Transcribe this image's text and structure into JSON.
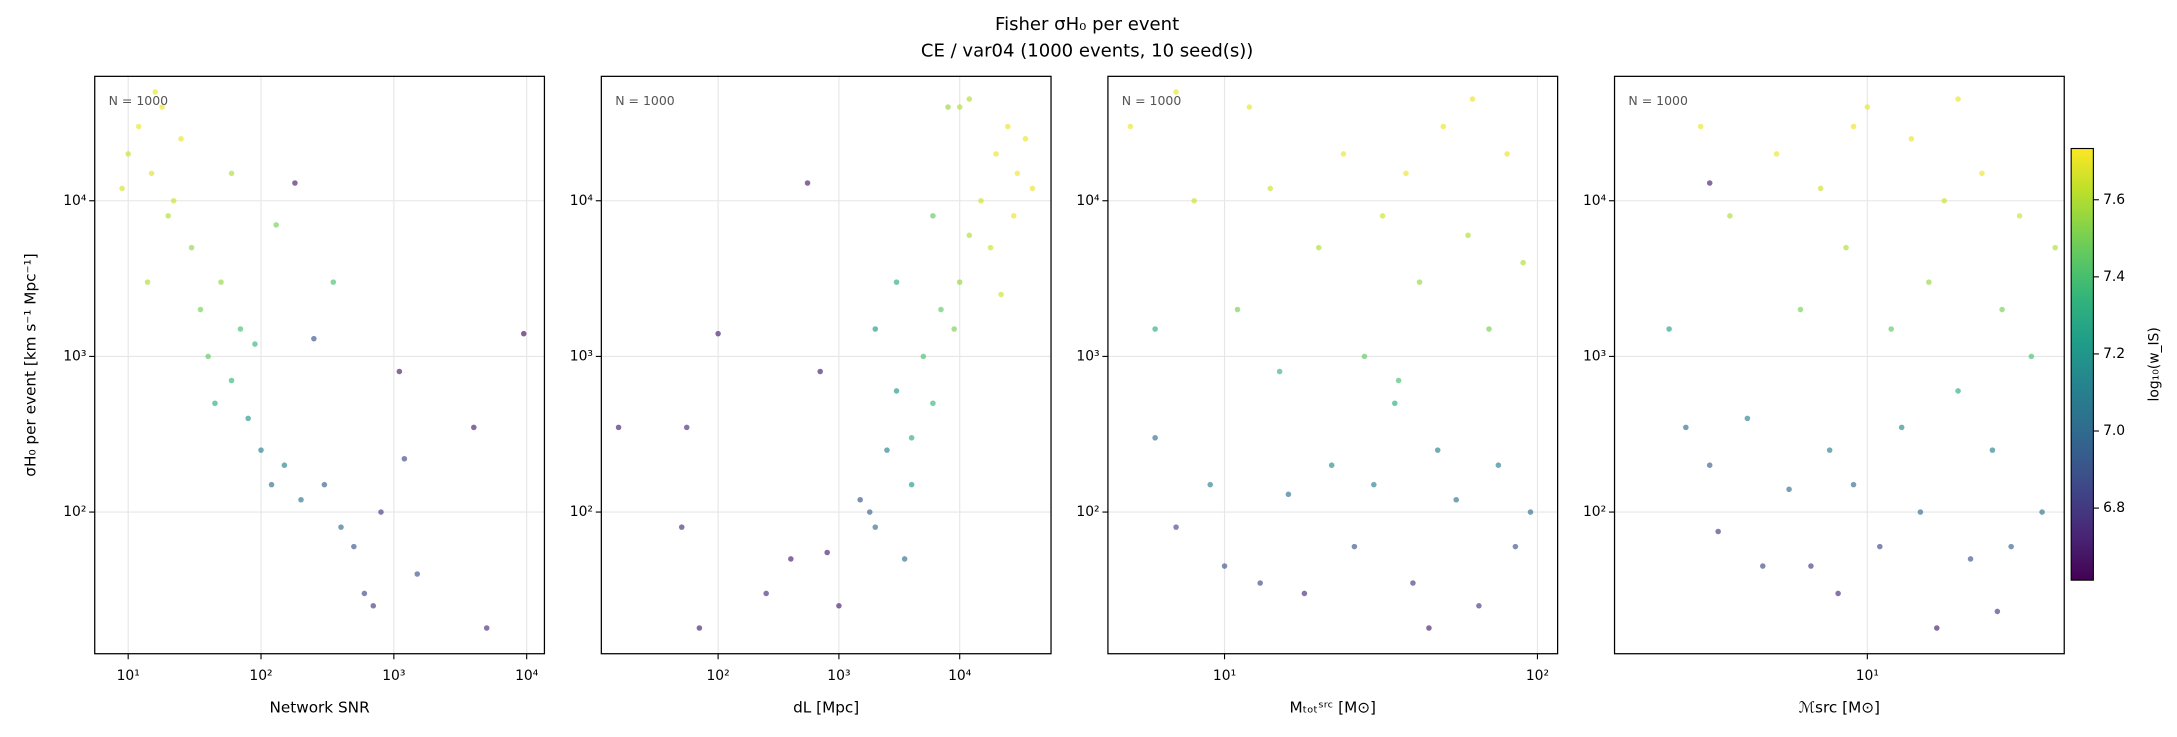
{
  "title": "Fisher σH₀ per event",
  "subtitle": "CE / var04  (1000 events, 10 seed(s))",
  "colorbar": {
    "label": "log₁₀(w_IS)",
    "cmap": "viridis",
    "clim": [
      6.613,
      7.733
    ],
    "ticks": [
      6.8,
      {
        "value": 7.0,
        "label": "7.0"
      },
      7.2,
      7.4,
      7.6
    ]
  },
  "chart_data": [
    {
      "type": "scatter",
      "xlabel": "Network SNR",
      "ylabel": "σH₀ per event [km s⁻¹ Mpc⁻¹]",
      "annotation": "N = 1000",
      "xlog": true,
      "ylog": true,
      "grid": true,
      "xlim": [
        5.6,
        13600
      ],
      "ylim": [
        12.3,
        63000
      ],
      "xticks": [
        {
          "value": 10,
          "label": "10¹"
        },
        {
          "value": 100,
          "label": "10²"
        },
        {
          "value": 1000,
          "label": "10³"
        },
        {
          "value": 10000,
          "label": "10⁴"
        }
      ],
      "yticks": [
        {
          "value": 100,
          "label": "10²"
        },
        {
          "value": 1000,
          "label": "10³"
        },
        {
          "value": 10000,
          "label": "10⁴"
        }
      ],
      "x": [
        10,
        12,
        15,
        18,
        20,
        25,
        9,
        30,
        35,
        40,
        50,
        60,
        70,
        80,
        100,
        120,
        150,
        200,
        300,
        400,
        500,
        600,
        700,
        1100,
        1500,
        4000,
        5000,
        9500,
        14,
        22,
        45,
        90,
        180,
        250,
        1200,
        800,
        16,
        60,
        130,
        350
      ],
      "y": [
        20000,
        30000,
        15000,
        40000,
        8000,
        25000,
        12000,
        5000,
        2000,
        1000,
        3000,
        700,
        1500,
        400,
        250,
        150,
        200,
        120,
        150,
        80,
        60,
        30,
        25,
        800,
        40,
        350,
        18,
        1400,
        3000,
        10000,
        500,
        1200,
        13000,
        1300,
        220,
        100,
        50000,
        15000,
        7000,
        3000
      ],
      "c": [
        7.65,
        7.7,
        7.68,
        7.7,
        7.6,
        7.7,
        7.66,
        7.55,
        7.5,
        7.45,
        7.55,
        7.35,
        7.4,
        7.2,
        7.1,
        7.0,
        7.1,
        7.05,
        6.95,
        7.0,
        6.9,
        6.85,
        6.8,
        6.7,
        6.9,
        6.7,
        6.75,
        6.65,
        7.6,
        7.65,
        7.3,
        7.35,
        6.7,
        6.9,
        6.85,
        6.8,
        7.7,
        7.6,
        7.5,
        7.4
      ]
    },
    {
      "type": "scatter",
      "xlabel": "dL [Mpc]",
      "annotation": "N = 1000",
      "xlog": true,
      "ylog": true,
      "grid": true,
      "xlim": [
        10.8,
        57000
      ],
      "ylim": [
        12.3,
        63000
      ],
      "xticks": [
        {
          "value": 100,
          "label": "10²"
        },
        {
          "value": 1000,
          "label": "10³"
        },
        {
          "value": 10000,
          "label": "10⁴"
        }
      ],
      "yticks": [
        {
          "value": 100,
          "label": "10²"
        },
        {
          "value": 1000,
          "label": "10³"
        },
        {
          "value": 10000,
          "label": "10⁴"
        }
      ],
      "x": [
        15,
        50,
        55,
        70,
        100,
        550,
        700,
        250,
        400,
        800,
        1000,
        1500,
        2000,
        2500,
        3000,
        3000,
        4000,
        5000,
        6000,
        7000,
        8000,
        10000,
        12000,
        15000,
        20000,
        25000,
        30000,
        35000,
        18000,
        9000,
        4000,
        6000,
        12000,
        28000,
        2000,
        1800,
        3500,
        22000,
        10000,
        40000
      ],
      "y": [
        350,
        80,
        350,
        18,
        1400,
        13000,
        800,
        30,
        50,
        55,
        25,
        120,
        80,
        250,
        600,
        3000,
        150,
        1000,
        500,
        2000,
        40000,
        3000,
        6000,
        10000,
        20000,
        30000,
        15000,
        25000,
        5000,
        1500,
        300,
        8000,
        45000,
        8000,
        1500,
        100,
        50,
        2500,
        40000,
        12000
      ],
      "c": [
        6.7,
        6.75,
        6.75,
        6.7,
        6.7,
        6.7,
        6.7,
        6.75,
        6.7,
        6.7,
        6.7,
        6.9,
        7.0,
        7.1,
        7.2,
        7.3,
        7.2,
        7.4,
        7.35,
        7.45,
        7.55,
        7.55,
        7.6,
        7.65,
        7.7,
        7.7,
        7.72,
        7.7,
        7.65,
        7.5,
        7.3,
        7.45,
        7.6,
        7.7,
        7.2,
        6.95,
        7.0,
        7.65,
        7.6,
        7.7
      ]
    },
    {
      "type": "scatter",
      "xlabel": "Mₜₒₜˢʳᶜ [M⊙]",
      "annotation": "N = 1000",
      "xlog": true,
      "ylog": true,
      "grid": true,
      "xlim": [
        4.24,
        116
      ],
      "ylim": [
        12.3,
        63000
      ],
      "xticks": [
        {
          "value": 10,
          "label": "10¹"
        },
        {
          "value": 100,
          "label": "10²"
        }
      ],
      "yticks": [
        {
          "value": 100,
          "label": "10²"
        },
        {
          "value": 1000,
          "label": "10³"
        },
        {
          "value": 10000,
          "label": "10⁴"
        }
      ],
      "x": [
        5,
        6,
        6,
        7,
        8,
        9,
        10,
        11,
        12,
        13,
        15,
        16,
        18,
        20,
        22,
        24,
        26,
        28,
        30,
        32,
        35,
        38,
        40,
        42,
        45,
        48,
        50,
        55,
        60,
        65,
        70,
        75,
        80,
        85,
        90,
        95,
        7,
        14,
        36,
        62
      ],
      "y": [
        30000,
        1500,
        300,
        80,
        10000,
        150,
        45,
        2000,
        40000,
        35,
        800,
        130,
        30,
        5000,
        200,
        20000,
        60,
        1000,
        150,
        8000,
        500,
        15000,
        35,
        3000,
        18,
        250,
        30000,
        120,
        6000,
        25,
        1500,
        200,
        20000,
        60,
        4000,
        100,
        50000,
        12000,
        700,
        45000
      ],
      "c": [
        7.7,
        7.3,
        7.0,
        6.85,
        7.65,
        7.1,
        6.9,
        7.5,
        7.7,
        6.85,
        7.35,
        7.05,
        6.75,
        7.6,
        7.15,
        7.7,
        6.9,
        7.45,
        7.1,
        7.65,
        7.3,
        7.7,
        6.8,
        7.55,
        6.7,
        7.1,
        7.7,
        7.05,
        7.6,
        6.8,
        7.5,
        7.1,
        7.7,
        6.9,
        7.6,
        7.0,
        7.7,
        7.65,
        7.4,
        7.7
      ]
    },
    {
      "type": "scatter",
      "xlabel": "ℳsrc [M⊙]",
      "annotation": "N = 1000",
      "xlog": true,
      "ylog": true,
      "grid": true,
      "xlim": [
        1.45,
        45
      ],
      "ylim": [
        12.3,
        63000
      ],
      "xticks": [
        {
          "value": 10,
          "label": "10¹"
        }
      ],
      "yticks": [
        {
          "value": 100,
          "label": "10²"
        },
        {
          "value": 1000,
          "label": "10³"
        },
        {
          "value": 10000,
          "label": "10⁴"
        }
      ],
      "x": [
        2.2,
        2.5,
        2.8,
        3,
        3.2,
        3.5,
        4,
        4.5,
        5,
        5.5,
        6,
        6.5,
        7,
        7.5,
        8,
        8.5,
        9,
        10,
        11,
        12,
        13,
        14,
        15,
        16,
        17,
        18,
        20,
        22,
        24,
        26,
        28,
        30,
        32,
        35,
        38,
        42,
        3,
        9,
        20,
        27
      ],
      "y": [
        1500,
        350,
        30000,
        200,
        75,
        8000,
        400,
        45,
        20000,
        140,
        2000,
        45,
        12000,
        250,
        30,
        5000,
        150,
        40000,
        60,
        1500,
        350,
        25000,
        100,
        3000,
        18,
        10000,
        600,
        50,
        15000,
        250,
        2000,
        60,
        8000,
        1000,
        100,
        5000,
        13000,
        30000,
        45000,
        23
      ],
      "c": [
        7.25,
        7.0,
        7.7,
        6.95,
        6.8,
        7.6,
        7.1,
        6.85,
        7.7,
        7.0,
        7.5,
        6.8,
        7.65,
        7.1,
        6.75,
        7.6,
        7.0,
        7.7,
        6.85,
        7.45,
        7.15,
        7.7,
        7.0,
        7.55,
        6.7,
        7.65,
        7.3,
        6.9,
        7.7,
        7.1,
        7.5,
        6.95,
        7.65,
        7.4,
        7.05,
        7.6,
        6.7,
        7.7,
        7.7,
        6.8
      ]
    }
  ]
}
